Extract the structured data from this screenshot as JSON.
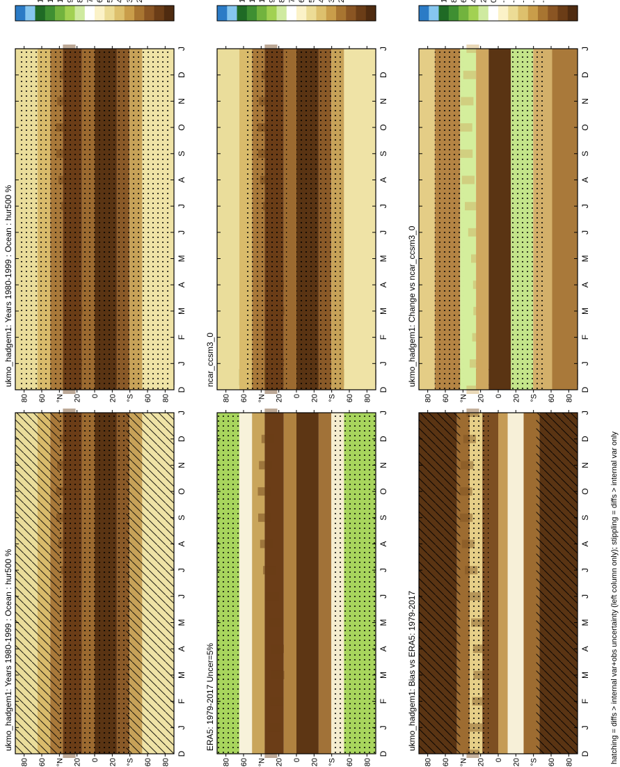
{
  "figure": {
    "footnote": "hatching = diffs > internal var+obs uncertainty (left column only); stippling = diffs > internal var only"
  },
  "chart_data": [
    {
      "type": "heatmap",
      "title": "ukmo_hadgem1: Years 1980-1999 : Ocean : hur500 %",
      "months": [
        "D",
        "J",
        "F",
        "M",
        "A",
        "M",
        "J",
        "J",
        "A",
        "S",
        "O",
        "N",
        "D",
        "J"
      ],
      "lat_ticks": [
        "80",
        "60",
        "°N",
        "20",
        "0",
        "20",
        "°S",
        "60",
        "80"
      ],
      "colorbar": {
        "ticks": [
          "120",
          "110",
          "100",
          "90",
          "80",
          "70",
          "60",
          "50",
          "40",
          "30",
          "20"
        ]
      }
    },
    {
      "type": "heatmap",
      "title": "ukmo_hadgem1: Years 1980-1999 : Ocean : hur500 %",
      "months": [
        "D",
        "J",
        "F",
        "M",
        "A",
        "M",
        "J",
        "J",
        "A",
        "S",
        "O",
        "N",
        "D",
        "J"
      ],
      "lat_ticks": [
        "80",
        "60",
        "°N",
        "20",
        "0",
        "20",
        "°S",
        "60",
        "80"
      ],
      "colorbar": {
        "ticks": [
          "120",
          "110",
          "100",
          "90",
          "80",
          "70",
          "60",
          "50",
          "40",
          "30",
          "20"
        ]
      }
    },
    {
      "type": "heatmap",
      "title": "ERA5: 1979-2017 Uncer=5%",
      "months": [
        "D",
        "J",
        "F",
        "M",
        "A",
        "M",
        "J",
        "J",
        "A",
        "S",
        "O",
        "N",
        "D",
        "J"
      ],
      "lat_ticks": [
        "80",
        "60",
        "°N",
        "20",
        "0",
        "20",
        "°S",
        "60",
        "80"
      ],
      "colorbar": {
        "ticks": [
          "120",
          "110",
          "100",
          "90",
          "80",
          "70",
          "60",
          "50",
          "40",
          "30",
          "20"
        ]
      }
    },
    {
      "type": "heatmap",
      "title": "ncar_ccsm3_0",
      "months": [
        "D",
        "J",
        "F",
        "M",
        "A",
        "M",
        "J",
        "J",
        "A",
        "S",
        "O",
        "N",
        "D",
        "J"
      ],
      "lat_ticks": [
        "80",
        "60",
        "°N",
        "20",
        "0",
        "20",
        "°S",
        "60",
        "80"
      ],
      "colorbar": {
        "ticks": [
          "120",
          "110",
          "100",
          "90",
          "80",
          "70",
          "60",
          "50",
          "40",
          "30",
          "20"
        ]
      }
    },
    {
      "type": "heatmap",
      "title": "ukmo_hadgem1: Bias vs ERA5: 1979-2017",
      "months": [
        "D",
        "J",
        "F",
        "M",
        "A",
        "M",
        "J",
        "J",
        "A",
        "S",
        "O",
        "N",
        "D",
        "J"
      ],
      "lat_ticks": [
        "80",
        "60",
        "°N",
        "20",
        "0",
        "20",
        "°S",
        "60",
        "80"
      ],
      "colorbar": {
        "ticks": [
          "10",
          "8",
          "6",
          "4",
          "2",
          "0",
          "-2",
          "-4",
          "-6",
          "-8",
          "-10"
        ]
      }
    },
    {
      "type": "heatmap",
      "title": "ukmo_hadgem1: Change vs ncar_ccsm3_0",
      "months": [
        "D",
        "J",
        "F",
        "M",
        "A",
        "M",
        "J",
        "J",
        "A",
        "S",
        "O",
        "N",
        "D",
        "J"
      ],
      "lat_ticks": [
        "80",
        "60",
        "°N",
        "20",
        "0",
        "20",
        "°S",
        "60",
        "80"
      ],
      "colorbar": {
        "ticks": [
          "10",
          "8",
          "6",
          "4",
          "2",
          "0",
          "-2",
          "-4",
          "-6",
          "-8",
          "-10"
        ]
      }
    }
  ]
}
